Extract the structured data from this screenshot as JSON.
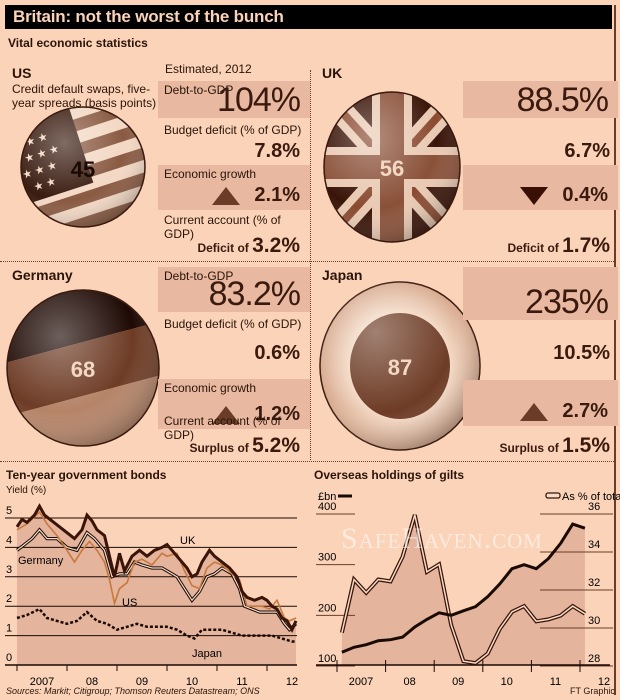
{
  "title": "Britain: not the worst of the bunch",
  "subtitle": "Vital economic statistics",
  "estimated": "Estimated, 2012",
  "labels": {
    "debt": "Debt-to-GDP",
    "deficit": "Budget deficit (% of GDP)",
    "growth": "Economic growth",
    "current_account": "Current account (% of GDP)"
  },
  "cds_description": "Credit default swaps, five-year spreads (basis points)",
  "countries": [
    {
      "name": "US",
      "cds": "45",
      "debt": "104%",
      "deficit": "7.8%",
      "growth": "2.1%",
      "growth_dir": "up",
      "ca_prefix": "Deficit of",
      "ca_value": "3.2%"
    },
    {
      "name": "UK",
      "cds": "56",
      "debt": "88.5%",
      "deficit": "6.7%",
      "growth": "0.4%",
      "growth_dir": "down",
      "ca_prefix": "Deficit of",
      "ca_value": "1.7%"
    },
    {
      "name": "Germany",
      "cds": "68",
      "debt": "83.2%",
      "deficit": "0.6%",
      "growth": "1.2%",
      "growth_dir": "up",
      "ca_prefix": "Surplus of",
      "ca_value": "5.2%"
    },
    {
      "name": "Japan",
      "cds": "87",
      "debt": "235%",
      "deficit": "10.5%",
      "growth": "2.7%",
      "growth_dir": "up",
      "ca_prefix": "Surplus of",
      "ca_value": "1.5%"
    }
  ],
  "watermark": "SafeHaven.com",
  "sources": "Sources: Markit; Citigroup; Thomson Reuters Datastream; ONS",
  "credit": "FT Graphic",
  "colors": {
    "bg": "#fbd3b8",
    "box": "#e8b9a0",
    "dark": "#3a1408",
    "us": "#c8783c",
    "fill": "#e4b49c"
  },
  "chart_data": [
    {
      "type": "line",
      "title": "Ten-year government bonds",
      "ylabel": "Yield (%)",
      "ylim": [
        0,
        5
      ],
      "yticks": [
        "0",
        "1",
        "2",
        "3",
        "4",
        "5"
      ],
      "xticks": [
        "2007",
        "08",
        "09",
        "10",
        "11",
        "12"
      ],
      "xlim": [
        2007,
        2012.6
      ],
      "grid": true,
      "series": [
        {
          "name": "UK",
          "points": [
            [
              2007.0,
              4.7
            ],
            [
              2007.1,
              4.95
            ],
            [
              2007.2,
              4.85
            ],
            [
              2007.35,
              5.1
            ],
            [
              2007.45,
              5.4
            ],
            [
              2007.55,
              5.1
            ],
            [
              2007.7,
              4.9
            ],
            [
              2007.85,
              4.7
            ],
            [
              2008.0,
              4.5
            ],
            [
              2008.15,
              4.3
            ],
            [
              2008.3,
              4.6
            ],
            [
              2008.4,
              5.1
            ],
            [
              2008.5,
              4.9
            ],
            [
              2008.6,
              4.6
            ],
            [
              2008.75,
              4.4
            ],
            [
              2008.85,
              3.7
            ],
            [
              2008.95,
              3.0
            ],
            [
              2009.05,
              3.8
            ],
            [
              2009.15,
              3.2
            ],
            [
              2009.3,
              3.7
            ],
            [
              2009.45,
              3.9
            ],
            [
              2009.6,
              3.7
            ],
            [
              2009.75,
              3.9
            ],
            [
              2009.9,
              4.0
            ],
            [
              2010.0,
              4.1
            ],
            [
              2010.1,
              3.9
            ],
            [
              2010.25,
              3.6
            ],
            [
              2010.4,
              3.3
            ],
            [
              2010.5,
              3.0
            ],
            [
              2010.6,
              3.1
            ],
            [
              2010.7,
              3.5
            ],
            [
              2010.85,
              3.9
            ],
            [
              2010.95,
              3.7
            ],
            [
              2011.1,
              3.5
            ],
            [
              2011.25,
              3.3
            ],
            [
              2011.4,
              3.0
            ],
            [
              2011.5,
              2.5
            ],
            [
              2011.6,
              2.3
            ],
            [
              2011.75,
              2.2
            ],
            [
              2011.9,
              2.3
            ],
            [
              2012.0,
              2.2
            ],
            [
              2012.1,
              2.0
            ],
            [
              2012.2,
              1.9
            ],
            [
              2012.3,
              1.6
            ],
            [
              2012.4,
              1.5
            ],
            [
              2012.5,
              1.2
            ],
            [
              2012.58,
              1.5
            ]
          ]
        },
        {
          "name": "US",
          "points": [
            [
              2007.0,
              4.6
            ],
            [
              2007.2,
              4.8
            ],
            [
              2007.45,
              5.2
            ],
            [
              2007.6,
              4.8
            ],
            [
              2007.8,
              4.4
            ],
            [
              2008.0,
              3.9
            ],
            [
              2008.15,
              3.5
            ],
            [
              2008.3,
              3.9
            ],
            [
              2008.45,
              4.2
            ],
            [
              2008.6,
              3.9
            ],
            [
              2008.75,
              3.5
            ],
            [
              2008.85,
              2.9
            ],
            [
              2008.95,
              2.1
            ],
            [
              2009.05,
              2.6
            ],
            [
              2009.2,
              2.8
            ],
            [
              2009.35,
              3.5
            ],
            [
              2009.5,
              3.6
            ],
            [
              2009.7,
              3.4
            ],
            [
              2009.9,
              3.8
            ],
            [
              2010.0,
              3.7
            ],
            [
              2010.2,
              3.8
            ],
            [
              2010.35,
              3.2
            ],
            [
              2010.5,
              2.7
            ],
            [
              2010.65,
              2.6
            ],
            [
              2010.8,
              3.3
            ],
            [
              2010.95,
              3.5
            ],
            [
              2011.1,
              3.4
            ],
            [
              2011.3,
              3.1
            ],
            [
              2011.45,
              2.9
            ],
            [
              2011.6,
              2.0
            ],
            [
              2011.75,
              2.0
            ],
            [
              2011.9,
              2.0
            ],
            [
              2012.05,
              1.9
            ],
            [
              2012.2,
              2.2
            ],
            [
              2012.35,
              1.6
            ],
            [
              2012.45,
              1.5
            ],
            [
              2012.58,
              1.6
            ]
          ]
        },
        {
          "name": "Germany",
          "points": [
            [
              2007.0,
              3.9
            ],
            [
              2007.15,
              4.1
            ],
            [
              2007.3,
              4.3
            ],
            [
              2007.45,
              4.6
            ],
            [
              2007.6,
              4.3
            ],
            [
              2007.8,
              4.3
            ],
            [
              2008.0,
              4.0
            ],
            [
              2008.2,
              3.9
            ],
            [
              2008.4,
              4.5
            ],
            [
              2008.55,
              4.3
            ],
            [
              2008.75,
              3.9
            ],
            [
              2008.9,
              3.0
            ],
            [
              2009.05,
              3.1
            ],
            [
              2009.2,
              3.1
            ],
            [
              2009.35,
              3.5
            ],
            [
              2009.5,
              3.4
            ],
            [
              2009.7,
              3.3
            ],
            [
              2009.9,
              3.3
            ],
            [
              2010.0,
              3.2
            ],
            [
              2010.2,
              3.0
            ],
            [
              2010.35,
              2.6
            ],
            [
              2010.5,
              2.2
            ],
            [
              2010.65,
              2.5
            ],
            [
              2010.8,
              3.0
            ],
            [
              2010.95,
              3.1
            ],
            [
              2011.1,
              3.3
            ],
            [
              2011.3,
              3.1
            ],
            [
              2011.45,
              2.6
            ],
            [
              2011.55,
              2.0
            ],
            [
              2011.7,
              1.9
            ],
            [
              2011.85,
              1.8
            ],
            [
              2012.0,
              1.8
            ],
            [
              2012.2,
              1.8
            ],
            [
              2012.35,
              1.4
            ],
            [
              2012.45,
              1.2
            ],
            [
              2012.58,
              1.4
            ]
          ]
        },
        {
          "name": "Japan",
          "points": [
            [
              2007.0,
              1.6
            ],
            [
              2007.2,
              1.7
            ],
            [
              2007.45,
              1.9
            ],
            [
              2007.6,
              1.6
            ],
            [
              2007.8,
              1.5
            ],
            [
              2008.0,
              1.4
            ],
            [
              2008.2,
              1.5
            ],
            [
              2008.4,
              1.8
            ],
            [
              2008.6,
              1.5
            ],
            [
              2008.8,
              1.4
            ],
            [
              2009.0,
              1.2
            ],
            [
              2009.2,
              1.3
            ],
            [
              2009.4,
              1.4
            ],
            [
              2009.6,
              1.3
            ],
            [
              2009.8,
              1.3
            ],
            [
              2010.0,
              1.3
            ],
            [
              2010.2,
              1.2
            ],
            [
              2010.4,
              1.0
            ],
            [
              2010.55,
              0.9
            ],
            [
              2010.7,
              1.2
            ],
            [
              2010.9,
              1.2
            ],
            [
              2011.1,
              1.2
            ],
            [
              2011.3,
              1.1
            ],
            [
              2011.5,
              1.0
            ],
            [
              2011.7,
              1.0
            ],
            [
              2011.9,
              1.0
            ],
            [
              2012.1,
              1.0
            ],
            [
              2012.3,
              0.9
            ],
            [
              2012.5,
              0.8
            ],
            [
              2012.58,
              0.8
            ]
          ]
        }
      ]
    },
    {
      "type": "line",
      "title": "Overseas holdings of gilts",
      "xticks": [
        "2007",
        "08",
        "09",
        "10",
        "11",
        "12"
      ],
      "xlim": [
        2007,
        2012.5
      ],
      "left_axis": {
        "label": "£bn",
        "ylim": [
          100,
          400
        ],
        "ticks": [
          "100",
          "200",
          "300",
          "400"
        ]
      },
      "right_axis": {
        "label": "As % of total",
        "ylim": [
          28,
          36
        ],
        "ticks": [
          "28",
          "30",
          "32",
          "34",
          "36"
        ]
      },
      "series": [
        {
          "name": "£bn",
          "axis": "left",
          "points": [
            [
              2007.1,
              125
            ],
            [
              2007.35,
              135
            ],
            [
              2007.6,
              140
            ],
            [
              2007.85,
              148
            ],
            [
              2008.1,
              150
            ],
            [
              2008.35,
              155
            ],
            [
              2008.6,
              175
            ],
            [
              2008.85,
              190
            ],
            [
              2009.1,
              203
            ],
            [
              2009.35,
              198
            ],
            [
              2009.6,
              207
            ],
            [
              2009.85,
              215
            ],
            [
              2010.1,
              235
            ],
            [
              2010.35,
              260
            ],
            [
              2010.6,
              290
            ],
            [
              2010.85,
              298
            ],
            [
              2011.1,
              290
            ],
            [
              2011.35,
              310
            ],
            [
              2011.6,
              340
            ],
            [
              2011.85,
              378
            ],
            [
              2012.1,
              370
            ]
          ]
        },
        {
          "name": "As % of total",
          "axis": "right",
          "points": [
            [
              2007.1,
              29.7
            ],
            [
              2007.35,
              32.5
            ],
            [
              2007.6,
              31.8
            ],
            [
              2007.85,
              32.5
            ],
            [
              2008.1,
              32.4
            ],
            [
              2008.35,
              33.7
            ],
            [
              2008.6,
              35.9
            ],
            [
              2008.85,
              32.9
            ],
            [
              2009.1,
              33.3
            ],
            [
              2009.35,
              30.1
            ],
            [
              2009.6,
              28.2
            ],
            [
              2009.85,
              28.1
            ],
            [
              2010.1,
              28.6
            ],
            [
              2010.35,
              29.9
            ],
            [
              2010.6,
              30.8
            ],
            [
              2010.85,
              31.1
            ],
            [
              2011.1,
              30.3
            ],
            [
              2011.35,
              30.4
            ],
            [
              2011.6,
              30.6
            ],
            [
              2011.85,
              31.1
            ],
            [
              2012.1,
              30.7
            ]
          ]
        }
      ]
    }
  ]
}
